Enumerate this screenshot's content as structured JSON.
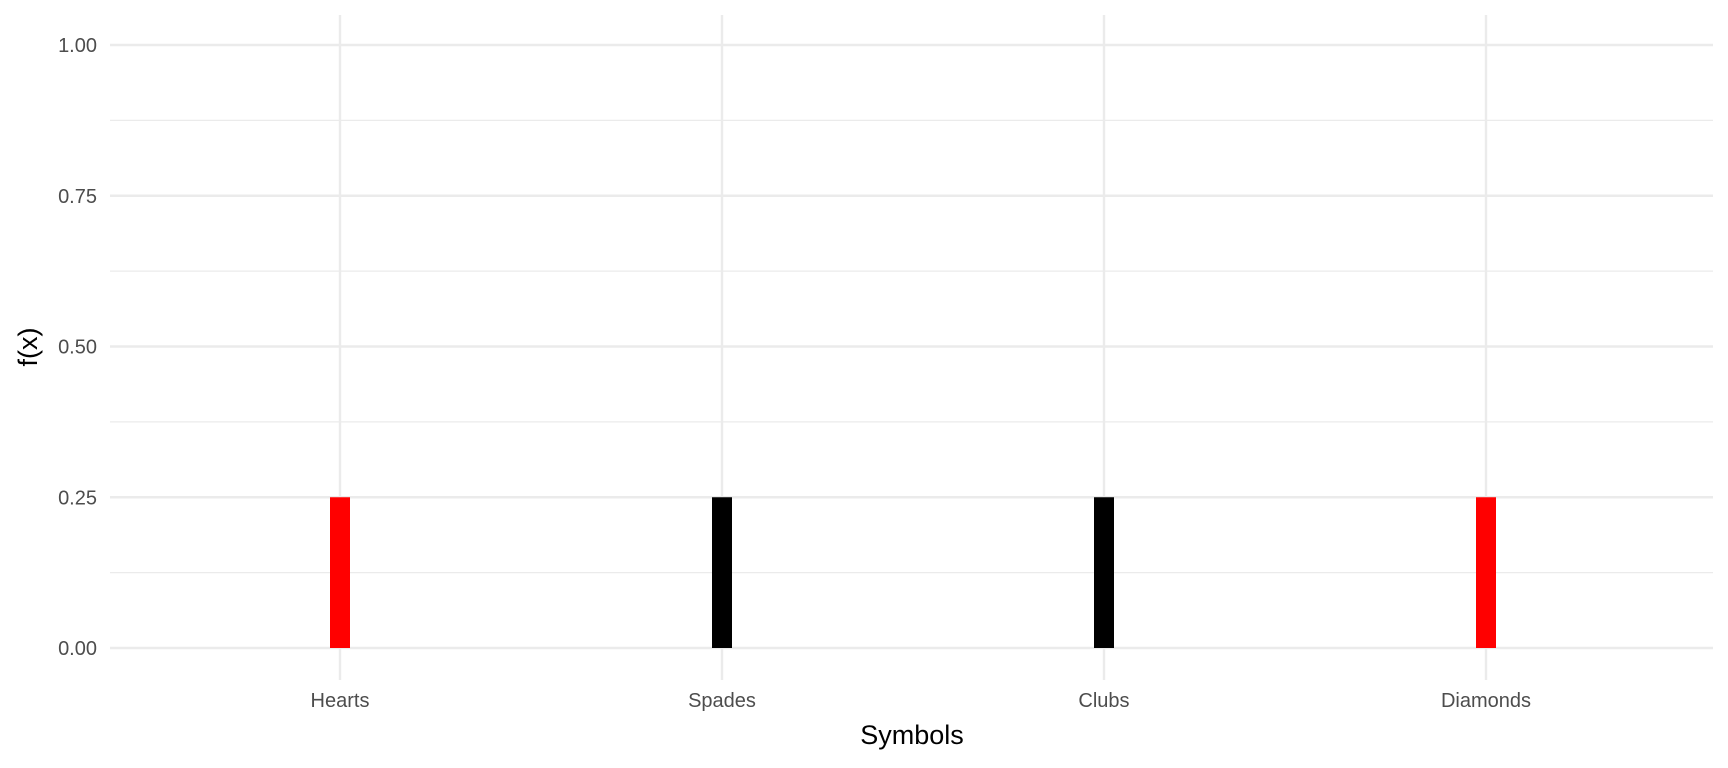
{
  "chart_data": {
    "type": "bar",
    "categories": [
      "Hearts",
      "Spades",
      "Clubs",
      "Diamonds"
    ],
    "values": [
      0.25,
      0.25,
      0.25,
      0.25
    ],
    "bar_colors": [
      "#ff0000",
      "#000000",
      "#000000",
      "#ff0000"
    ],
    "xlabel": "Symbols",
    "ylabel": "f(x)",
    "ylim": [
      0,
      1
    ],
    "y_ticks": [
      "0.00",
      "0.25",
      "0.50",
      "0.75",
      "1.00"
    ],
    "grid": true,
    "grid_color": "#ebebeb",
    "legend": "none"
  }
}
